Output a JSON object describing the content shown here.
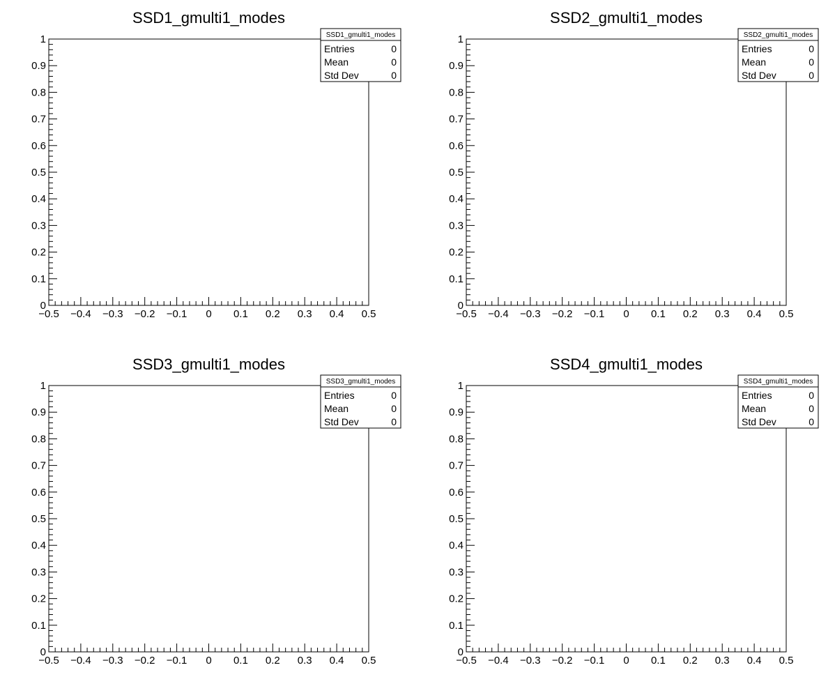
{
  "chart_data": [
    {
      "type": "histogram",
      "title": "SSD1_gmulti1_modes",
      "xlabel": "",
      "ylabel": "",
      "xlim": [
        -0.5,
        0.5
      ],
      "ylim": [
        0,
        1
      ],
      "x_ticks": [
        "-0.5",
        "-0.4",
        "-0.3",
        "-0.2",
        "-0.1",
        "0",
        "0.1",
        "0.2",
        "0.3",
        "0.4",
        "0.5"
      ],
      "y_ticks": [
        "0",
        "0.1",
        "0.2",
        "0.3",
        "0.4",
        "0.5",
        "0.6",
        "0.7",
        "0.8",
        "0.9",
        "1"
      ],
      "values": [],
      "grid": false,
      "stats": {
        "name": "SSD1_gmulti1_modes",
        "placement": "top-right",
        "rows": [
          {
            "label": "Entries",
            "value": "0"
          },
          {
            "label": "Mean",
            "value": "0"
          },
          {
            "label": "Std Dev",
            "value": "0"
          }
        ]
      }
    },
    {
      "type": "histogram",
      "title": "SSD2_gmulti1_modes",
      "xlabel": "",
      "ylabel": "",
      "xlim": [
        -0.5,
        0.5
      ],
      "ylim": [
        0,
        1
      ],
      "x_ticks": [
        "-0.5",
        "-0.4",
        "-0.3",
        "-0.2",
        "-0.1",
        "0",
        "0.1",
        "0.2",
        "0.3",
        "0.4",
        "0.5"
      ],
      "y_ticks": [
        "0",
        "0.1",
        "0.2",
        "0.3",
        "0.4",
        "0.5",
        "0.6",
        "0.7",
        "0.8",
        "0.9",
        "1"
      ],
      "values": [],
      "grid": false,
      "stats": {
        "name": "SSD2_gmulti1_modes",
        "placement": "top-right",
        "rows": [
          {
            "label": "Entries",
            "value": "0"
          },
          {
            "label": "Mean",
            "value": "0"
          },
          {
            "label": "Std Dev",
            "value": "0"
          }
        ]
      }
    },
    {
      "type": "histogram",
      "title": "SSD3_gmulti1_modes",
      "xlabel": "",
      "ylabel": "",
      "xlim": [
        -0.5,
        0.5
      ],
      "ylim": [
        0,
        1
      ],
      "x_ticks": [
        "-0.5",
        "-0.4",
        "-0.3",
        "-0.2",
        "-0.1",
        "0",
        "0.1",
        "0.2",
        "0.3",
        "0.4",
        "0.5"
      ],
      "y_ticks": [
        "0",
        "0.1",
        "0.2",
        "0.3",
        "0.4",
        "0.5",
        "0.6",
        "0.7",
        "0.8",
        "0.9",
        "1"
      ],
      "values": [],
      "grid": false,
      "stats": {
        "name": "SSD3_gmulti1_modes",
        "placement": "top-right",
        "rows": [
          {
            "label": "Entries",
            "value": "0"
          },
          {
            "label": "Mean",
            "value": "0"
          },
          {
            "label": "Std Dev",
            "value": "0"
          }
        ]
      }
    },
    {
      "type": "histogram",
      "title": "SSD4_gmulti1_modes",
      "xlabel": "",
      "ylabel": "",
      "xlim": [
        -0.5,
        0.5
      ],
      "ylim": [
        0,
        1
      ],
      "x_ticks": [
        "-0.5",
        "-0.4",
        "-0.3",
        "-0.2",
        "-0.1",
        "0",
        "0.1",
        "0.2",
        "0.3",
        "0.4",
        "0.5"
      ],
      "y_ticks": [
        "0",
        "0.1",
        "0.2",
        "0.3",
        "0.4",
        "0.5",
        "0.6",
        "0.7",
        "0.8",
        "0.9",
        "1"
      ],
      "values": [],
      "grid": false,
      "stats": {
        "name": "SSD4_gmulti1_modes",
        "placement": "top-right",
        "rows": [
          {
            "label": "Entries",
            "value": "0"
          },
          {
            "label": "Mean",
            "value": "0"
          },
          {
            "label": "Std Dev",
            "value": "0"
          }
        ]
      }
    }
  ]
}
